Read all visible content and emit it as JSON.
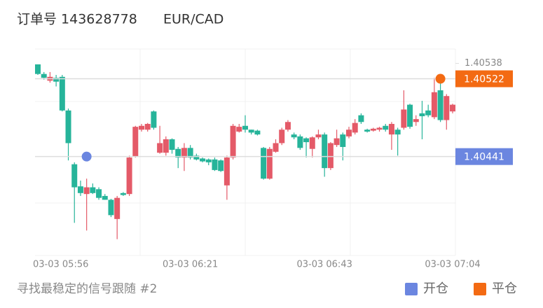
{
  "chart_data": {
    "type": "candlestick",
    "title": "订单号 143628778",
    "symbol": "EUR/CAD",
    "footer": "寻找最稳定的信号跟随 #2",
    "up_color": "#e45a68",
    "down_color": "#26b49a",
    "categories": [
      "03-03 05:56",
      null,
      null,
      null,
      null,
      null,
      null,
      null,
      null,
      null,
      null,
      null,
      null,
      null,
      null,
      null,
      null,
      null,
      null,
      null,
      null,
      null,
      null,
      null,
      null,
      "03-03 06:21",
      null,
      null,
      null,
      null,
      null,
      null,
      null,
      null,
      null,
      null,
      null,
      null,
      null,
      null,
      null,
      null,
      null,
      null,
      null,
      null,
      null,
      "03-03 06:43",
      null,
      null,
      null,
      null,
      null,
      null,
      null,
      null,
      null,
      null,
      null,
      null,
      null,
      null,
      null,
      null,
      null,
      null,
      null,
      null,
      "03-03 07:04"
    ],
    "open": [
      1.40537,
      1.40527,
      1.4052,
      1.40523,
      1.40524,
      1.40489,
      1.40433,
      1.4041,
      1.40402,
      1.40409,
      1.40407,
      1.404,
      1.40396,
      1.40376,
      1.40403,
      1.40402,
      1.40441,
      1.40469,
      1.40469,
      1.40488,
      1.40445,
      1.40445,
      1.40459,
      1.40449,
      1.4044,
      1.4045,
      1.40442,
      1.40439,
      1.40438,
      1.40438,
      1.40437,
      1.40411,
      1.4044,
      1.40467,
      1.40473,
      1.40469,
      1.40468,
      1.4045,
      1.40418,
      1.40446,
      1.40455,
      1.40469,
      1.40464,
      1.40462,
      1.4046,
      1.40449,
      1.40461,
      1.40464,
      1.40429,
      1.40453,
      1.40464,
      1.40462,
      1.40466,
      1.40484,
      1.40469,
      1.40468,
      1.40469,
      1.40473,
      1.40464,
      1.40469,
      1.40471,
      1.40495,
      1.40477,
      1.40486,
      1.40489,
      1.40482,
      1.4051,
      1.40479,
      1.40488
    ],
    "high": [
      1.40537,
      1.40529,
      1.40529,
      1.40526,
      1.40526,
      1.40491,
      1.40435,
      1.40416,
      1.40418,
      1.40413,
      1.40409,
      1.40402,
      1.40397,
      1.404,
      1.40404,
      1.40442,
      1.40473,
      1.40475,
      1.40476,
      1.40489,
      1.40473,
      1.40462,
      1.4046,
      1.40451,
      1.40455,
      1.40453,
      1.40444,
      1.4044,
      1.40439,
      1.4044,
      1.40438,
      1.40442,
      1.40475,
      1.40475,
      1.40484,
      1.40469,
      1.40469,
      1.40451,
      1.40451,
      1.40459,
      1.40471,
      1.40479,
      1.40466,
      1.40464,
      1.40461,
      1.40462,
      1.40469,
      1.40466,
      1.40456,
      1.40469,
      1.40466,
      1.40472,
      1.4048,
      1.40486,
      1.4047,
      1.40471,
      1.40472,
      1.40475,
      1.40477,
      1.40471,
      1.4051,
      1.40496,
      1.40484,
      1.40499,
      1.40495,
      1.40523,
      1.40524,
      1.40506,
      1.40496
    ],
    "low": [
      1.40526,
      1.40521,
      1.40518,
      1.40514,
      1.40488,
      1.40437,
      1.40372,
      1.404,
      1.40364,
      1.40402,
      1.40396,
      1.40396,
      1.40378,
      1.40355,
      1.404,
      1.404,
      1.4044,
      1.40467,
      1.40467,
      1.40469,
      1.40444,
      1.40442,
      1.40444,
      1.40429,
      1.40426,
      1.40438,
      1.40437,
      1.40435,
      1.40432,
      1.40426,
      1.40425,
      1.40396,
      1.40438,
      1.40466,
      1.40466,
      1.40464,
      1.40463,
      1.40417,
      1.40417,
      1.40445,
      1.40453,
      1.40467,
      1.40459,
      1.40448,
      1.4044,
      1.4044,
      1.40459,
      1.4042,
      1.40427,
      1.40451,
      1.40437,
      1.4046,
      1.40464,
      1.40475,
      1.40466,
      1.40467,
      1.40467,
      1.40467,
      1.40448,
      1.40442,
      1.40469,
      1.4047,
      1.40473,
      1.40459,
      1.40482,
      1.4048,
      1.40477,
      1.40469,
      1.40486
    ],
    "close": [
      1.40527,
      1.40523,
      1.40524,
      1.40519,
      1.40489,
      1.40455,
      1.40409,
      1.40403,
      1.40409,
      1.40403,
      1.40398,
      1.40396,
      1.4038,
      1.40398,
      1.40401,
      1.4044,
      1.40472,
      1.40473,
      1.40475,
      1.40471,
      1.40455,
      1.40459,
      1.40448,
      1.4044,
      1.4045,
      1.4044,
      1.40438,
      1.40436,
      1.40435,
      1.40427,
      1.40426,
      1.4044,
      1.40473,
      1.40472,
      1.40469,
      1.40466,
      1.40464,
      1.40418,
      1.40449,
      1.40455,
      1.40469,
      1.40477,
      1.40461,
      1.4045,
      1.40456,
      1.40461,
      1.40464,
      1.40429,
      1.40455,
      1.4046,
      1.40451,
      1.40469,
      1.40476,
      1.40477,
      1.40467,
      1.4047,
      1.40471,
      1.40469,
      1.40475,
      1.40464,
      1.4049,
      1.40472,
      1.4048,
      1.40483,
      1.40484,
      1.40508,
      1.40479,
      1.40504,
      1.40495
    ],
    "series": [
      {
        "name": "开仓",
        "color": "#6b86e0",
        "values": [
          null,
          null,
          null,
          null,
          null,
          null,
          null,
          null,
          1.40441,
          null,
          null,
          null,
          null,
          null,
          null,
          null,
          null,
          null,
          null,
          null,
          null,
          null,
          null,
          null,
          null,
          null,
          null,
          null,
          null,
          null,
          null,
          null,
          null,
          null,
          null,
          null,
          null,
          null,
          null,
          null,
          null,
          null,
          null,
          null,
          null,
          null,
          null,
          null,
          null,
          null,
          null,
          null,
          null,
          null,
          null,
          null,
          null,
          null,
          null,
          null,
          null,
          null,
          null,
          null,
          null,
          null,
          null,
          null,
          null
        ]
      },
      {
        "name": "平仓",
        "color": "#f36a13",
        "values": [
          null,
          null,
          null,
          null,
          null,
          null,
          null,
          null,
          null,
          null,
          null,
          null,
          null,
          null,
          null,
          null,
          null,
          null,
          null,
          null,
          null,
          null,
          null,
          null,
          null,
          null,
          null,
          null,
          null,
          null,
          null,
          null,
          null,
          null,
          null,
          null,
          null,
          null,
          null,
          null,
          null,
          null,
          null,
          null,
          null,
          null,
          null,
          null,
          null,
          null,
          null,
          null,
          null,
          null,
          null,
          null,
          null,
          null,
          null,
          null,
          null,
          null,
          null,
          null,
          null,
          null,
          1.40522,
          null,
          null
        ]
      }
    ],
    "ylim": [
      1.40338,
      1.40553
    ],
    "yticks": [
      1.40538
    ]
  }
}
